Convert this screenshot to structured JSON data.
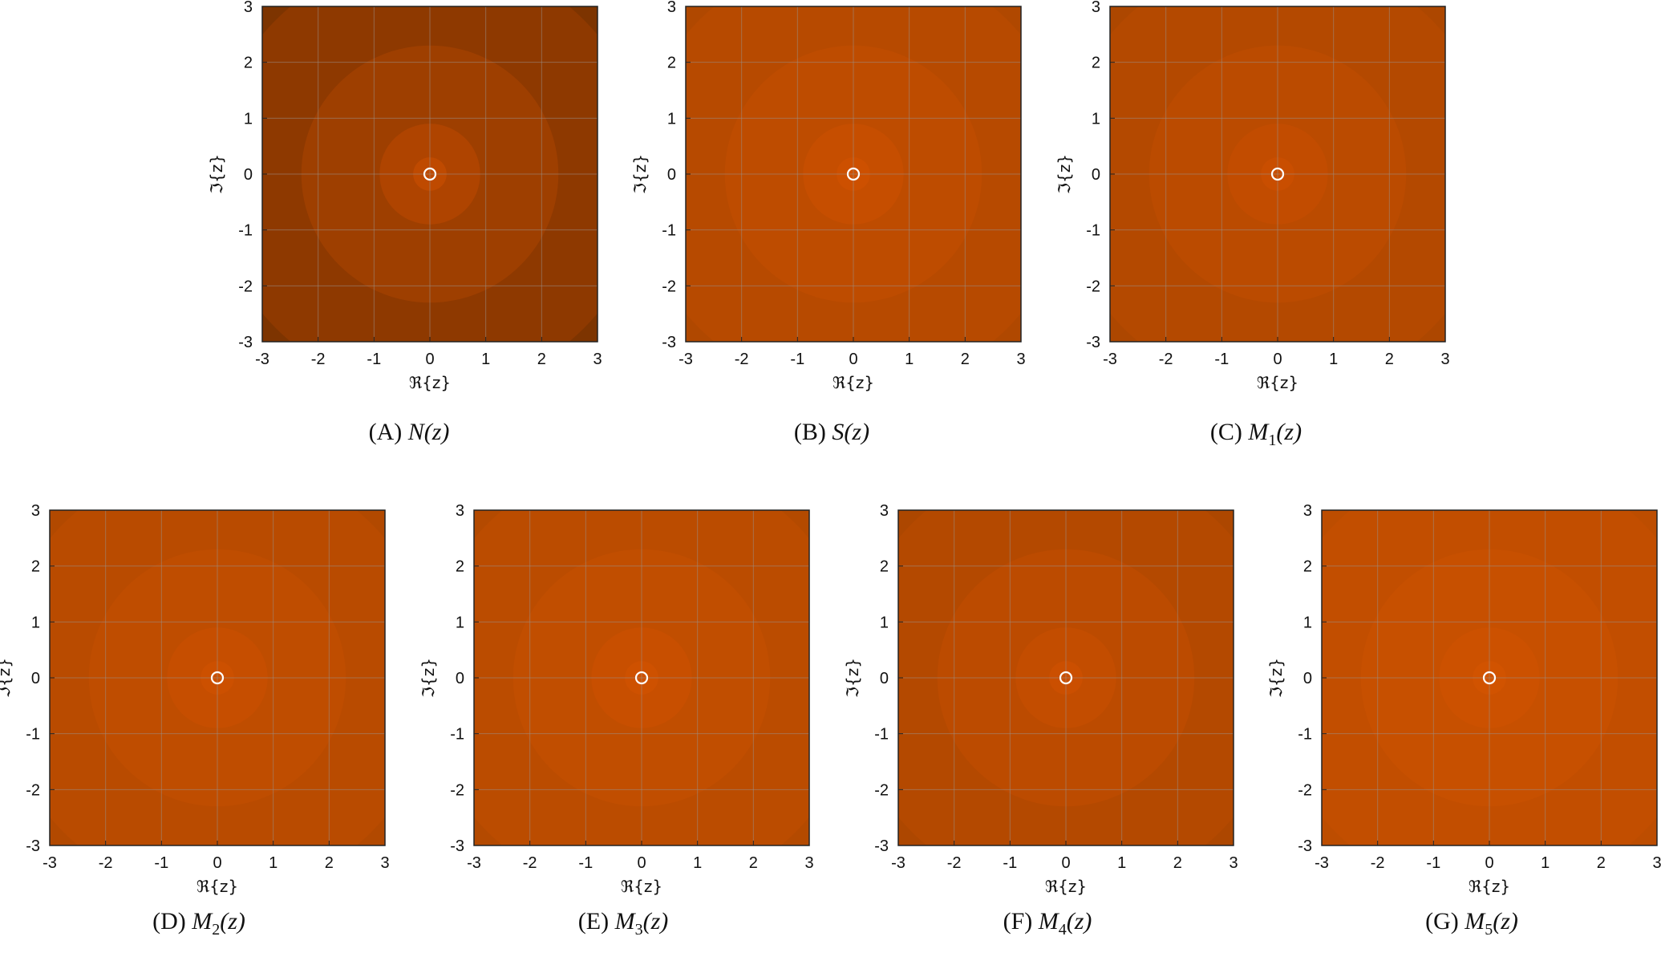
{
  "chart_data": [
    {
      "id": "A",
      "type": "heatmap",
      "caption_label": "(A)",
      "caption_fn": "N",
      "caption_sub": "",
      "caption_arg": "(z)",
      "xlabel": "ℜ{z}",
      "ylabel": "ℑ{z}",
      "xlim": [
        -3,
        3
      ],
      "ylim": [
        -3,
        3
      ],
      "xticks": [
        "-3",
        "-2",
        "-1",
        "0",
        "1",
        "2",
        "3"
      ],
      "yticks": [
        "3",
        "2",
        "1",
        "0",
        "-1",
        "-2",
        "-3"
      ],
      "grid": true,
      "marker": {
        "x": 0,
        "y": 0
      },
      "colors": {
        "outer": "#7d3400",
        "inner": "#d04f00"
      }
    },
    {
      "id": "B",
      "type": "heatmap",
      "caption_label": "(B)",
      "caption_fn": "S",
      "caption_sub": "",
      "caption_arg": "(z)",
      "xlabel": "ℜ{z}",
      "ylabel": "ℑ{z}",
      "xlim": [
        -3,
        3
      ],
      "ylim": [
        -3,
        3
      ],
      "xticks": [
        "-3",
        "-2",
        "-1",
        "0",
        "1",
        "2",
        "3"
      ],
      "yticks": [
        "3",
        "2",
        "1",
        "0",
        "-1",
        "-2",
        "-3"
      ],
      "grid": true,
      "marker": {
        "x": 0,
        "y": 0
      },
      "colors": {
        "outer": "#b04800",
        "inner": "#d45200"
      }
    },
    {
      "id": "C",
      "type": "heatmap",
      "caption_label": "(C)",
      "caption_fn": "M",
      "caption_sub": "1",
      "caption_arg": "(z)",
      "xlabel": "ℜ{z}",
      "ylabel": "ℑ{z}",
      "xlim": [
        -3,
        3
      ],
      "ylim": [
        -3,
        3
      ],
      "xticks": [
        "-3",
        "-2",
        "-1",
        "0",
        "1",
        "2",
        "3"
      ],
      "yticks": [
        "3",
        "2",
        "1",
        "0",
        "-1",
        "-2",
        "-3"
      ],
      "grid": true,
      "marker": {
        "x": 0,
        "y": 0
      },
      "colors": {
        "outer": "#ad4700",
        "inner": "#d05000"
      }
    },
    {
      "id": "D",
      "type": "heatmap",
      "caption_label": "(D)",
      "caption_fn": "M",
      "caption_sub": "2",
      "caption_arg": "(z)",
      "xlabel": "ℜ{z}",
      "ylabel": "ℑ{z}",
      "xlim": [
        -3,
        3
      ],
      "ylim": [
        -3,
        3
      ],
      "xticks": [
        "-3",
        "-2",
        "-1",
        "0",
        "1",
        "2",
        "3"
      ],
      "yticks": [
        "3",
        "2",
        "1",
        "0",
        "-1",
        "-2",
        "-3"
      ],
      "grid": true,
      "marker": {
        "x": 0,
        "y": 0
      },
      "colors": {
        "outer": "#b24900",
        "inner": "#d35200"
      }
    },
    {
      "id": "E",
      "type": "heatmap",
      "caption_label": "(E)",
      "caption_fn": "M",
      "caption_sub": "3",
      "caption_arg": "(z)",
      "xlabel": "ℜ{z}",
      "ylabel": "ℑ{z}",
      "xlim": [
        -3,
        3
      ],
      "ylim": [
        -3,
        3
      ],
      "xticks": [
        "-3",
        "-2",
        "-1",
        "0",
        "1",
        "2",
        "3"
      ],
      "yticks": [
        "3",
        "2",
        "1",
        "0",
        "-1",
        "-2",
        "-3"
      ],
      "grid": true,
      "marker": {
        "x": 0,
        "y": 0
      },
      "colors": {
        "outer": "#b44a00",
        "inner": "#d55300"
      }
    },
    {
      "id": "F",
      "type": "heatmap",
      "caption_label": "(F)",
      "caption_fn": "M",
      "caption_sub": "4",
      "caption_arg": "(z)",
      "xlabel": "ℜ{z}",
      "ylabel": "ℑ{z}",
      "xlim": [
        -3,
        3
      ],
      "ylim": [
        -3,
        3
      ],
      "xticks": [
        "-3",
        "-2",
        "-1",
        "0",
        "1",
        "2",
        "3"
      ],
      "yticks": [
        "3",
        "2",
        "1",
        "0",
        "-1",
        "-2",
        "-3"
      ],
      "grid": true,
      "marker": {
        "x": 0,
        "y": 0
      },
      "colors": {
        "outer": "#ad4700",
        "inner": "#d25100"
      }
    },
    {
      "id": "G",
      "type": "heatmap",
      "caption_label": "(G)",
      "caption_fn": "M",
      "caption_sub": "5",
      "caption_arg": "(z)",
      "xlabel": "ℜ{z}",
      "ylabel": "ℑ{z}",
      "xlim": [
        -3,
        3
      ],
      "ylim": [
        -3,
        3
      ],
      "xticks": [
        "-3",
        "-2",
        "-1",
        "0",
        "1",
        "2",
        "3"
      ],
      "yticks": [
        "3",
        "2",
        "1",
        "0",
        "-1",
        "-2",
        "-3"
      ],
      "grid": true,
      "marker": {
        "x": 0,
        "y": 0
      },
      "colors": {
        "outer": "#bd4d00",
        "inner": "#d65400"
      }
    }
  ]
}
